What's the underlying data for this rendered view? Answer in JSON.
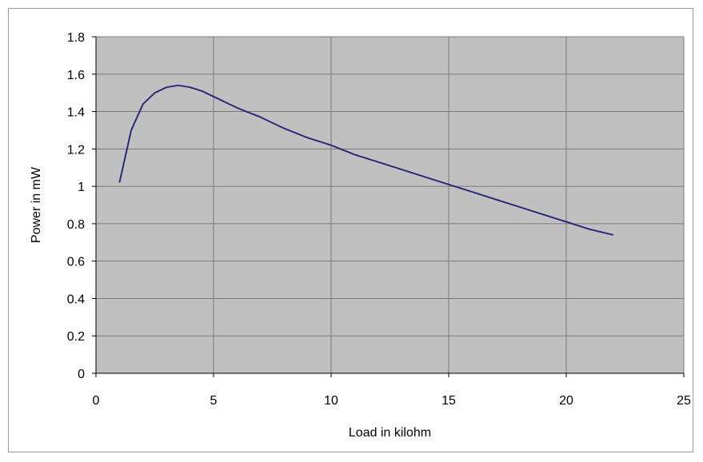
{
  "chart_data": {
    "type": "line",
    "title": "",
    "xlabel": "Load in kilohm",
    "ylabel": "Power in mW",
    "xlim": [
      0,
      25
    ],
    "ylim": [
      0,
      1.8
    ],
    "xticks": [
      0,
      5,
      10,
      15,
      20,
      25
    ],
    "yticks": [
      0,
      0.2,
      0.4,
      0.6,
      0.8,
      1,
      1.2,
      1.4,
      1.6,
      1.8
    ],
    "xtick_labels": [
      "0",
      "5",
      "10",
      "15",
      "20",
      "25"
    ],
    "ytick_labels": [
      "0",
      "0.2",
      "0.4",
      "0.6",
      "0.8",
      "1",
      "1.2",
      "1.4",
      "1.6",
      "1.8"
    ],
    "grid": true,
    "legend": "none",
    "colors": {
      "plot_background": "#c0c0c0",
      "line": "#2b2b7a",
      "grid": "#7a7a7a"
    },
    "series": [
      {
        "x": [
          1,
          1.5,
          2,
          2.5,
          3,
          3.5,
          4,
          4.5,
          5,
          6,
          7,
          8,
          9,
          10,
          11,
          12,
          13,
          14,
          15,
          16,
          17,
          18,
          19,
          20,
          21,
          22
        ],
        "y": [
          1.02,
          1.3,
          1.44,
          1.5,
          1.53,
          1.54,
          1.53,
          1.51,
          1.48,
          1.42,
          1.37,
          1.31,
          1.26,
          1.22,
          1.17,
          1.13,
          1.09,
          1.05,
          1.01,
          0.97,
          0.93,
          0.89,
          0.85,
          0.81,
          0.77,
          0.74
        ]
      }
    ]
  }
}
